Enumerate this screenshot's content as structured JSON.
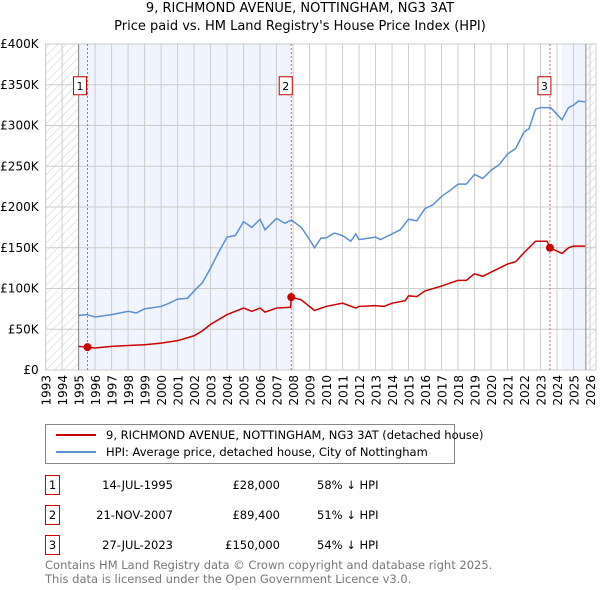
{
  "chart_data": {
    "type": "line",
    "title": "9, RICHMOND AVENUE, NOTTINGHAM, NG3 3AT",
    "subtitle": "Price paid vs. HM Land Registry's House Price Index (HPI)",
    "xlim": [
      1993,
      2026
    ],
    "ylim": [
      0,
      400000
    ],
    "x_ticks": [
      "1993",
      "1994",
      "1995",
      "1996",
      "1997",
      "1998",
      "1999",
      "2000",
      "2001",
      "2002",
      "2003",
      "2004",
      "2005",
      "2006",
      "2007",
      "2008",
      "2009",
      "2010",
      "2011",
      "2012",
      "2013",
      "2014",
      "2015",
      "2016",
      "2017",
      "2018",
      "2019",
      "2020",
      "2021",
      "2022",
      "2023",
      "2024",
      "2025",
      "2026"
    ],
    "y_ticks": [
      {
        "v": 0,
        "label": "£0"
      },
      {
        "v": 50000,
        "label": "£50K"
      },
      {
        "v": 100000,
        "label": "£100K"
      },
      {
        "v": 150000,
        "label": "£150K"
      },
      {
        "v": 200000,
        "label": "£200K"
      },
      {
        "v": 250000,
        "label": "£250K"
      },
      {
        "v": 300000,
        "label": "£300K"
      },
      {
        "v": 350000,
        "label": "£350K"
      },
      {
        "v": 400000,
        "label": "£400K"
      }
    ],
    "grid": true,
    "series": [
      {
        "name": "9, RICHMOND AVENUE, NOTTINGHAM, NG3 3AT (detached house)",
        "color": "#cc0000",
        "points": [
          [
            1995.0,
            29
          ],
          [
            1995.5,
            28
          ],
          [
            1996,
            27
          ],
          [
            1997,
            29
          ],
          [
            1998,
            30
          ],
          [
            1999,
            31
          ],
          [
            2000,
            33
          ],
          [
            2001,
            36
          ],
          [
            2002,
            42
          ],
          [
            2002.5,
            48
          ],
          [
            2003,
            56
          ],
          [
            2004,
            68
          ],
          [
            2005,
            76
          ],
          [
            2005.5,
            72
          ],
          [
            2006,
            76
          ],
          [
            2006.3,
            71
          ],
          [
            2007,
            76
          ],
          [
            2007.85,
            77
          ],
          [
            2007.9,
            89.4
          ],
          [
            2008.5,
            86
          ],
          [
            2009.3,
            73
          ],
          [
            2010,
            78
          ],
          [
            2011,
            82
          ],
          [
            2011.8,
            76
          ],
          [
            2012,
            78
          ],
          [
            2013,
            79
          ],
          [
            2013.5,
            78
          ],
          [
            2014,
            82
          ],
          [
            2014.8,
            85
          ],
          [
            2015,
            91
          ],
          [
            2015.5,
            90
          ],
          [
            2016,
            97
          ],
          [
            2017,
            103
          ],
          [
            2018,
            110
          ],
          [
            2018.5,
            110
          ],
          [
            2019,
            118
          ],
          [
            2019.5,
            115
          ],
          [
            2020,
            120
          ],
          [
            2021,
            130
          ],
          [
            2021.5,
            133
          ],
          [
            2022,
            144
          ],
          [
            2022.7,
            158
          ],
          [
            2023.4,
            158
          ],
          [
            2023.57,
            150
          ],
          [
            2024.3,
            143
          ],
          [
            2024.7,
            150
          ],
          [
            2025,
            152
          ],
          [
            2025.7,
            152
          ]
        ]
      },
      {
        "name": "HPI: Average price, detached house, City of Nottingham",
        "color": "#5b8fd0",
        "points": [
          [
            1995.0,
            67
          ],
          [
            1995.5,
            68
          ],
          [
            1996,
            65
          ],
          [
            1997,
            68
          ],
          [
            1998,
            72
          ],
          [
            1998.5,
            70
          ],
          [
            1999,
            75
          ],
          [
            2000,
            78
          ],
          [
            2000.5,
            82
          ],
          [
            2001,
            87
          ],
          [
            2001.6,
            88
          ],
          [
            2002,
            97
          ],
          [
            2002.5,
            107
          ],
          [
            2003,
            125
          ],
          [
            2003.5,
            145
          ],
          [
            2004,
            163
          ],
          [
            2004.5,
            165
          ],
          [
            2005,
            182
          ],
          [
            2005.5,
            175
          ],
          [
            2006,
            185
          ],
          [
            2006.3,
            172
          ],
          [
            2007,
            186
          ],
          [
            2007.5,
            180
          ],
          [
            2007.9,
            184
          ],
          [
            2008.5,
            175
          ],
          [
            2009,
            160
          ],
          [
            2009.3,
            150
          ],
          [
            2009.7,
            162
          ],
          [
            2010,
            162
          ],
          [
            2010.5,
            168
          ],
          [
            2011,
            165
          ],
          [
            2011.5,
            158
          ],
          [
            2011.8,
            167
          ],
          [
            2012,
            160
          ],
          [
            2013,
            163
          ],
          [
            2013.3,
            160
          ],
          [
            2014,
            167
          ],
          [
            2014.5,
            172
          ],
          [
            2015,
            185
          ],
          [
            2015.5,
            183
          ],
          [
            2016,
            198
          ],
          [
            2016.5,
            203
          ],
          [
            2017,
            213
          ],
          [
            2017.5,
            220
          ],
          [
            2018,
            228
          ],
          [
            2018.5,
            228
          ],
          [
            2019,
            240
          ],
          [
            2019.5,
            235
          ],
          [
            2020,
            245
          ],
          [
            2020.5,
            252
          ],
          [
            2021,
            265
          ],
          [
            2021.5,
            272
          ],
          [
            2022,
            292
          ],
          [
            2022.3,
            296
          ],
          [
            2022.7,
            320
          ],
          [
            2023,
            322
          ],
          [
            2023.6,
            322
          ],
          [
            2023.8,
            318
          ],
          [
            2024.3,
            307
          ],
          [
            2024.7,
            322
          ],
          [
            2025,
            325
          ],
          [
            2025.3,
            330
          ],
          [
            2025.7,
            329
          ]
        ]
      }
    ],
    "sales": [
      {
        "label": "1",
        "x": 1995.54,
        "y": 28
      },
      {
        "label": "2",
        "x": 2007.89,
        "y": 89.4
      },
      {
        "label": "3",
        "x": 2023.57,
        "y": 150
      }
    ],
    "legend": "below"
  },
  "transactions": [
    {
      "num": "1",
      "date": "14-JUL-1995",
      "price": "£28,000",
      "hpi": "58% ↓ HPI"
    },
    {
      "num": "2",
      "date": "21-NOV-2007",
      "price": "£89,400",
      "hpi": "51% ↓ HPI"
    },
    {
      "num": "3",
      "date": "27-JUL-2023",
      "price": "£150,000",
      "hpi": "54% ↓ HPI"
    }
  ],
  "footer": {
    "line1": "Contains HM Land Registry data © Crown copyright and database right 2025.",
    "line2": "This data is licensed under the Open Government Licence v3.0."
  }
}
